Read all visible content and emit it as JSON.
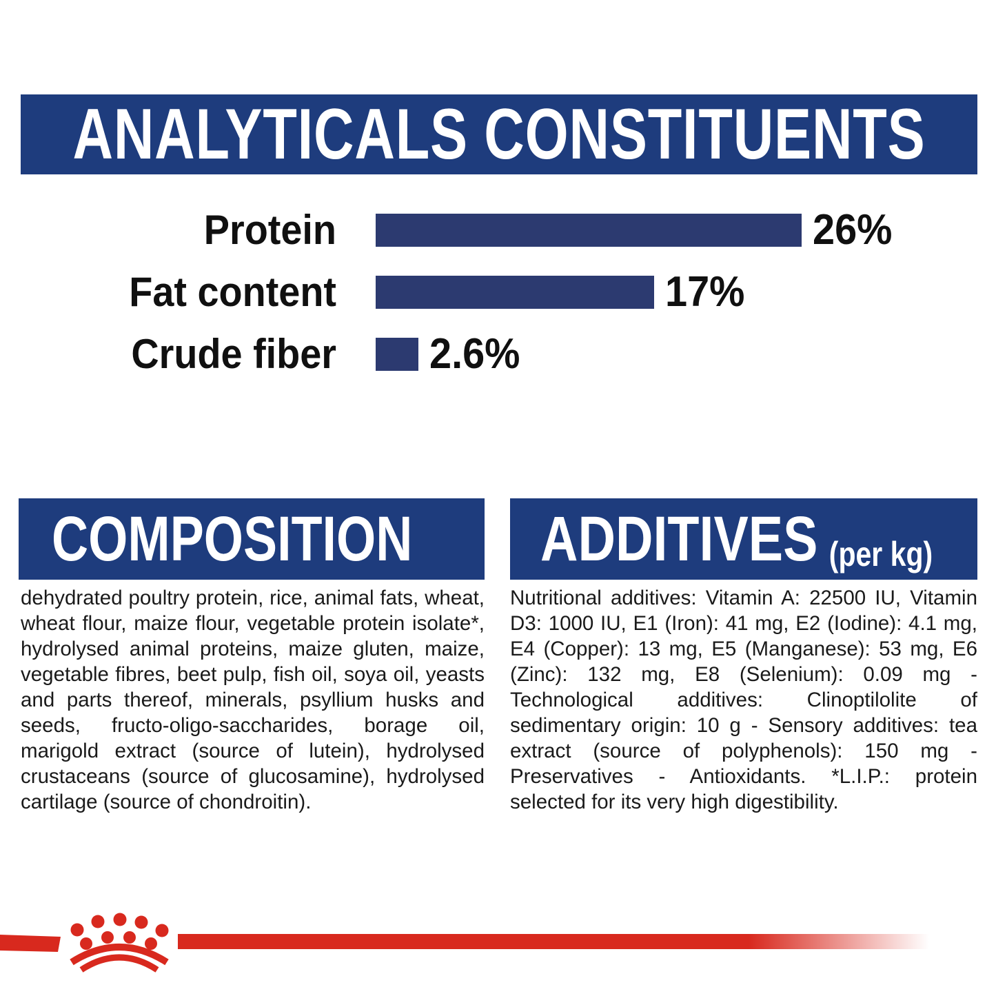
{
  "colors": {
    "header_blue": "#1e3c7d",
    "bar_navy": "#2c3a70",
    "brand_red": "#d8291e",
    "text_black": "#1a1a1a"
  },
  "analyticals": {
    "title": "ANALYTICALS CONSTITUENTS"
  },
  "chart_data": {
    "type": "bar",
    "orientation": "horizontal",
    "title": "ANALYTICALS CONSTITUENTS",
    "categories": [
      "Protein",
      "Fat content",
      "Crude fiber"
    ],
    "values": [
      26,
      17,
      2.6
    ],
    "value_labels": [
      "26%",
      "17%",
      "2.6%"
    ],
    "unit": "%",
    "xlim": [
      0,
      30
    ],
    "bar_color": "#2c3a70",
    "grid": false,
    "legend": false
  },
  "composition": {
    "title": "COMPOSITION",
    "body": "dehydrated poultry protein, rice, animal fats, wheat, wheat flour, maize flour, vegetable protein isolate*, hydrolysed animal proteins, maize gluten, maize, vegetable fibres, beet pulp, fish oil, soya oil, yeasts and parts thereof, minerals, psyllium husks and seeds, fructo-oligo-saccharides, borage oil, marigold extract (source of lutein), hydrolysed crustaceans (source of glucosamine), hydrolysed cartilage (source of chondroitin)."
  },
  "additives": {
    "title": "ADDITIVES",
    "unit_note": "(per kg)",
    "body": "Nutritional additives: Vitamin A: 22500 IU, Vitamin D3: 1000 IU, E1 (Iron): 41 mg, E2 (Iodine): 4.1 mg, E4 (Copper): 13 mg, E5 (Manganese): 53 mg, E6 (Zinc): 132 mg, E8 (Selenium): 0.09 mg - Technological additives: Clinoptilolite of sedimentary origin: 10 g - Sensory additives: tea extract (source of polyphenols): 150 mg - Preservatives - Antioxidants. *L.I.P.: protein selected for its very high digestibility."
  },
  "footer": {
    "brand_mark": "royal-canin-crown-logo"
  }
}
